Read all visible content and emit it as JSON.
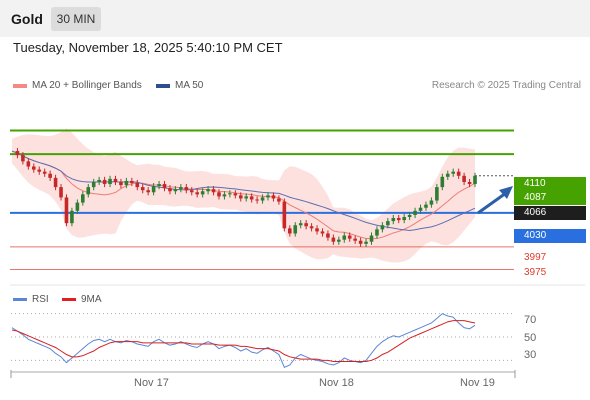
{
  "header": {
    "title": "Gold",
    "timeframe": "30 MIN"
  },
  "datetime": "Tuesday, November 18, 2025 5:40:10 PM CET",
  "legend": {
    "ma20": "MA 20 + Bollinger Bands",
    "ma50": "MA 50",
    "credit": "Research © 2025 Trading Central"
  },
  "levels": [
    {
      "value": "4110",
      "type": "resistance"
    },
    {
      "value": "4087",
      "type": "resistance"
    },
    {
      "value": "4066",
      "type": "current"
    },
    {
      "value": "4030",
      "type": "pivot"
    },
    {
      "value": "3997",
      "type": "support"
    },
    {
      "value": "3975",
      "type": "support"
    }
  ],
  "rsi": {
    "label": "RSI",
    "ma_label": "9MA",
    "ticks": [
      "70",
      "50",
      "30"
    ]
  },
  "x_axis": [
    "Nov 17",
    "Nov 18",
    "Nov 19"
  ],
  "colors": {
    "green": "#46a200",
    "blue": "#2a6fe0",
    "red": "#e03b2e",
    "candle_up": "#2e7d32",
    "candle_down": "#c62828",
    "band": "#f9c9c4",
    "ma50": "#5a6fb0",
    "arrow": "#2b5fa8"
  },
  "chart_data": {
    "type": "candlestick",
    "price_series": [
      4090,
      4086,
      4080,
      4075,
      4072,
      4070,
      4068,
      4064,
      4055,
      4045,
      4020,
      4032,
      4040,
      4048,
      4055,
      4060,
      4062,
      4058,
      4063,
      4060,
      4057,
      4061,
      4059,
      4055,
      4052,
      4050,
      4056,
      4058,
      4054,
      4051,
      4053,
      4055,
      4052,
      4050,
      4048,
      4051,
      4053,
      4050,
      4046,
      4048,
      4049,
      4047,
      4044,
      4046,
      4043,
      4042,
      4045,
      4047,
      4044,
      4041,
      4015,
      4010,
      4018,
      4020,
      4017,
      4015,
      4012,
      4010,
      4006,
      4002,
      4004,
      4008,
      4005,
      4003,
      4000,
      4002,
      4008,
      4014,
      4018,
      4022,
      4025,
      4023,
      4026,
      4028,
      4032,
      4035,
      4038,
      4042,
      4055,
      4065,
      4068,
      4070,
      4066,
      4060,
      4058,
      4066
    ],
    "rsi_series": [
      58,
      55,
      52,
      48,
      46,
      44,
      42,
      40,
      36,
      33,
      28,
      32,
      36,
      40,
      44,
      47,
      48,
      46,
      48,
      46,
      45,
      47,
      46,
      44,
      43,
      42,
      46,
      48,
      45,
      43,
      44,
      46,
      44,
      42,
      41,
      44,
      46,
      44,
      40,
      42,
      43,
      41,
      38,
      40,
      37,
      36,
      39,
      41,
      38,
      35,
      24,
      26,
      32,
      35,
      33,
      31,
      30,
      29,
      27,
      26,
      28,
      32,
      30,
      29,
      28,
      30,
      36,
      42,
      46,
      49,
      51,
      50,
      52,
      54,
      56,
      58,
      60,
      62,
      66,
      70,
      68,
      67,
      62,
      58,
      57,
      60
    ],
    "rsi_ma_series": [
      56,
      55,
      53,
      51,
      49,
      47,
      45,
      43,
      41,
      38,
      35,
      33,
      33,
      34,
      36,
      38,
      41,
      43,
      45,
      46,
      46,
      46,
      46,
      46,
      45,
      45,
      45,
      45,
      45,
      45,
      45,
      45,
      45,
      44,
      44,
      44,
      44,
      44,
      43,
      43,
      43,
      43,
      42,
      42,
      41,
      40,
      40,
      40,
      39,
      38,
      35,
      33,
      32,
      31,
      31,
      31,
      31,
      30,
      30,
      29,
      29,
      29,
      29,
      29,
      29,
      29,
      30,
      32,
      35,
      37,
      40,
      43,
      46,
      49,
      51,
      53,
      55,
      57,
      59,
      61,
      63,
      64,
      64,
      64,
      63,
      62
    ],
    "y_range": [
      3960,
      4125
    ],
    "rsi_range": [
      20,
      80
    ]
  }
}
